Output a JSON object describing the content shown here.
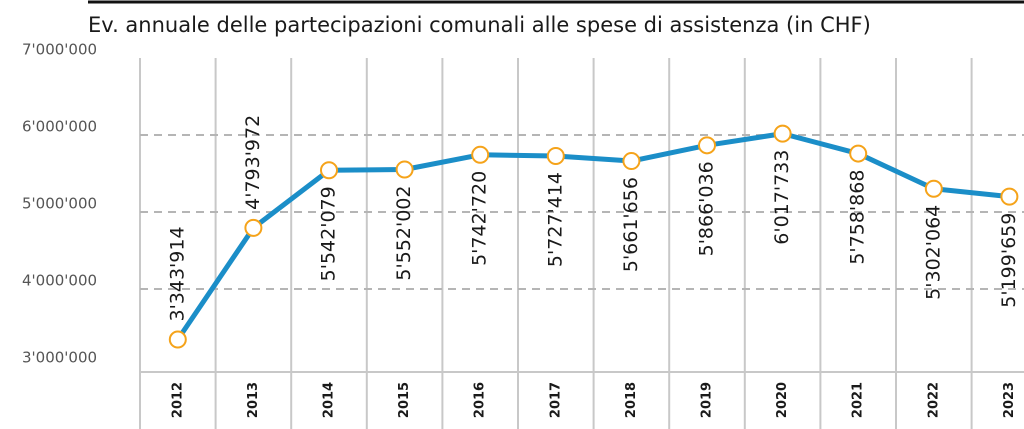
{
  "chart_data": {
    "type": "line",
    "title": "Ev. annuale delle partecipazioni comunali alle spese di assistenza (in CHF)",
    "categories": [
      "2012",
      "2013",
      "2014",
      "2015",
      "2016",
      "2017",
      "2018",
      "2019",
      "2020",
      "2021",
      "2022",
      "2023"
    ],
    "series": [
      {
        "color": "#1b8ec8",
        "marker_color": "#f5a31a",
        "values": [
          3343914,
          4793972,
          5542079,
          5552002,
          5742720,
          5727414,
          5661656,
          5866036,
          6017733,
          5758868,
          5302064,
          5199659
        ],
        "value_labels": [
          "3'343'914",
          "4'793'972",
          "5'542'079",
          "5'552'002",
          "5'742'720",
          "5'727'414",
          "5'661'656",
          "5'866'036",
          "6'017'733",
          "5'758'868",
          "5'302'064",
          "5'199'659"
        ]
      }
    ],
    "ylim": [
      3000000,
      7000000
    ],
    "yticks": [
      {
        "value": 3000000,
        "label": "3'000'000"
      },
      {
        "value": 4000000,
        "label": "4'000'000"
      },
      {
        "value": 5000000,
        "label": "5'000'000"
      },
      {
        "value": 6000000,
        "label": "6'000'000"
      },
      {
        "value": 7000000,
        "label": "7'000'000"
      }
    ],
    "grid": true
  }
}
